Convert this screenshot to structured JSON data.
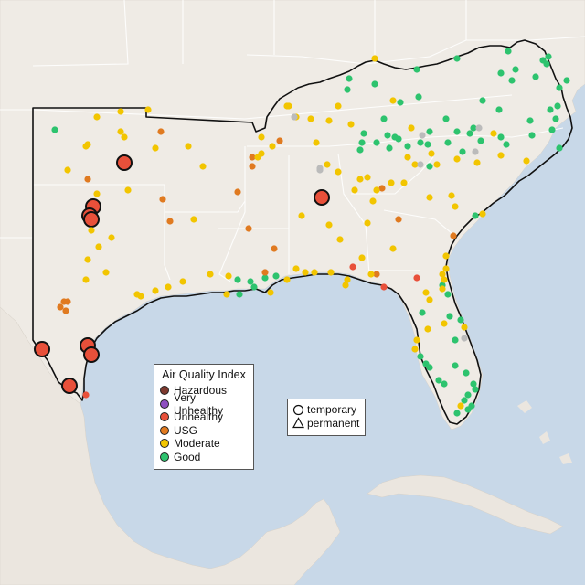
{
  "legend": {
    "title": "Air Quality Index",
    "categories": [
      {
        "label": "Hazardous",
        "color": "#7e3a2f"
      },
      {
        "label": "Very Unhealthy",
        "color": "#8e4fc0"
      },
      {
        "label": "Unhealthy",
        "color": "#e8503a"
      },
      {
        "label": "USG",
        "color": "#e07a20"
      },
      {
        "label": "Moderate",
        "color": "#f2c500"
      },
      {
        "label": "Good",
        "color": "#2dc36e"
      }
    ]
  },
  "shape_legend": {
    "temporary": "temporary",
    "permanent": "permanent"
  },
  "colors": {
    "water": "#c8d8e8",
    "land": "#efebe5",
    "region_outline": "#111111",
    "state_border": "#ffffff",
    "no_data": "#bbbbbb"
  }
}
